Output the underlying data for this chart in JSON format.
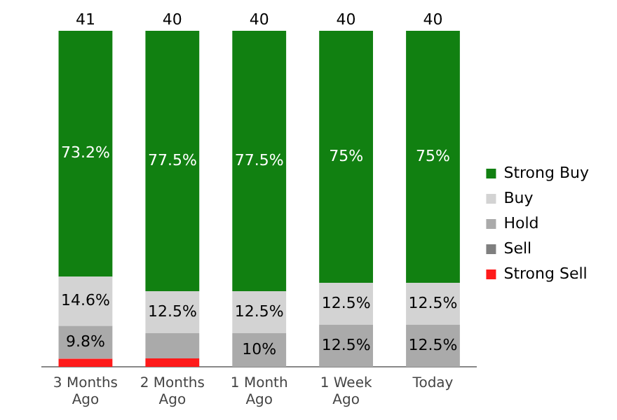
{
  "chart_data": {
    "type": "bar",
    "stacked": true,
    "categories": [
      "3 Months Ago",
      "2 Months Ago",
      "1 Month Ago",
      "1 Week Ago",
      "Today"
    ],
    "series": [
      {
        "name": "Strong Sell",
        "color": "#ff1a1a",
        "values": [
          2.4,
          2.5,
          0,
          0,
          0
        ],
        "value_labels": [
          null,
          null,
          null,
          null,
          null
        ]
      },
      {
        "name": "Sell",
        "color": "#7f7f7f",
        "values": [
          0,
          0,
          0,
          0,
          0
        ],
        "value_labels": [
          null,
          null,
          null,
          null,
          null
        ]
      },
      {
        "name": "Hold",
        "color": "#aaaaaa",
        "values": [
          9.8,
          7.5,
          10,
          12.5,
          12.5
        ],
        "value_labels": [
          "9.8%",
          null,
          "10%",
          "12.5%",
          "12.5%"
        ]
      },
      {
        "name": "Buy",
        "color": "#d3d3d3",
        "values": [
          14.6,
          12.5,
          12.5,
          12.5,
          12.5
        ],
        "value_labels": [
          "14.6%",
          "12.5%",
          "12.5%",
          "12.5%",
          "12.5%"
        ]
      },
      {
        "name": "Strong Buy",
        "color": "#118011",
        "values": [
          73.2,
          77.5,
          77.5,
          75,
          75
        ],
        "value_labels": [
          "73.2%",
          "77.5%",
          "77.5%",
          "75%",
          "75%"
        ]
      }
    ],
    "annotations": [
      {
        "text": "41",
        "x": "3 Months Ago",
        "y": 100
      },
      {
        "text": "40",
        "x": "2 Months Ago",
        "y": 100
      },
      {
        "text": "40",
        "x": "1 Month Ago",
        "y": 100
      },
      {
        "text": "40",
        "x": "1 Week Ago",
        "y": 100
      },
      {
        "text": "40",
        "x": "Today",
        "y": 100
      }
    ],
    "tick_labels": "x",
    "grid": false,
    "legend": "right"
  }
}
